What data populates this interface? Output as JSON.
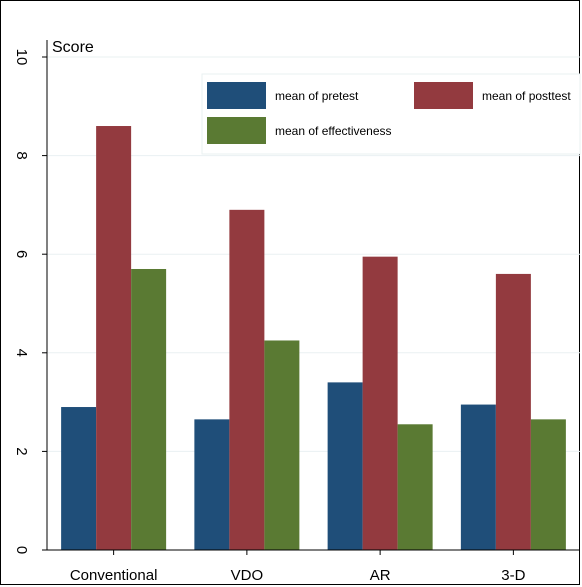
{
  "chart_data": {
    "type": "bar",
    "title": "",
    "ylabel": "Score",
    "xlabel": "",
    "ylim": [
      0,
      10
    ],
    "yticks": [
      0,
      2,
      4,
      6,
      8,
      10
    ],
    "categories": [
      "Conventional",
      "VDO",
      "AR",
      "3-D"
    ],
    "series": [
      {
        "name": "mean of pretest",
        "color": "#1f4e79",
        "values": [
          2.9,
          2.65,
          3.4,
          2.95
        ]
      },
      {
        "name": "mean of posttest",
        "color": "#933a3f",
        "values": [
          8.6,
          6.9,
          5.95,
          5.6
        ]
      },
      {
        "name": "mean of effectiveness",
        "color": "#5a7a33",
        "values": [
          5.7,
          4.25,
          2.55,
          2.65
        ]
      }
    ],
    "legend_position": "top-right",
    "grid": "horizontal"
  }
}
